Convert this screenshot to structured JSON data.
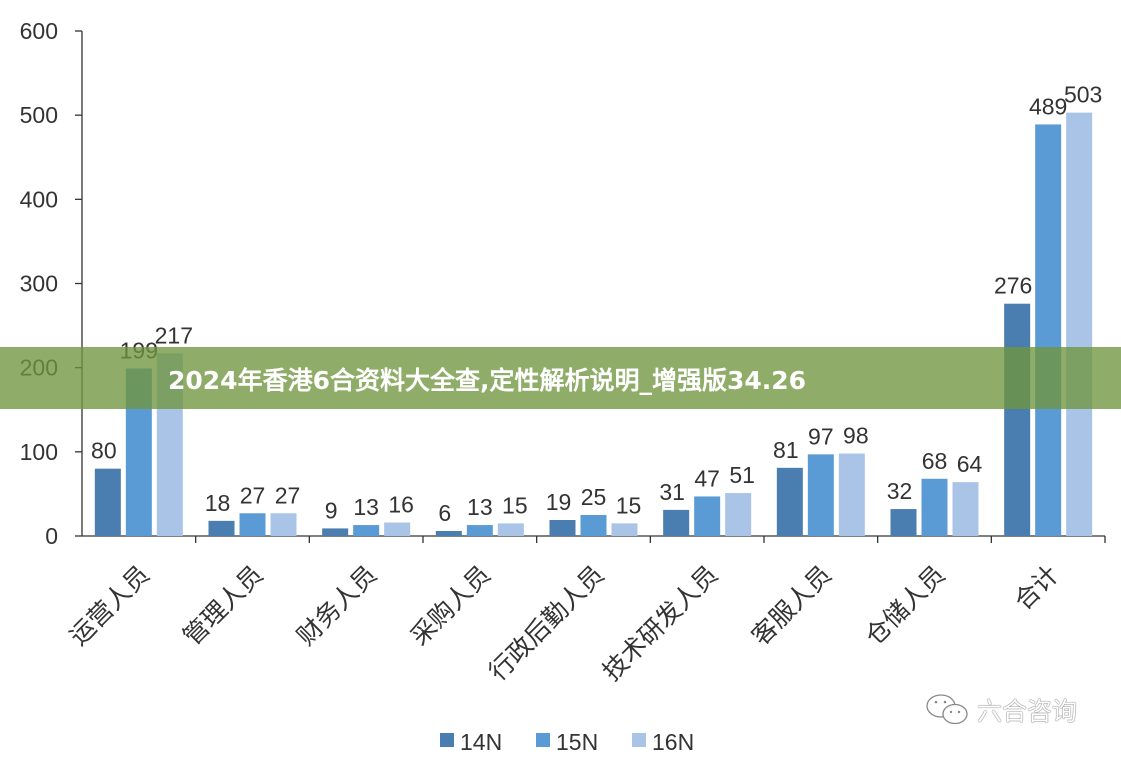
{
  "chart_data": {
    "type": "bar",
    "categories": [
      "运营人员",
      "管理人员",
      "财务人员",
      "采购人员",
      "行政后勤人员",
      "技术研发人员",
      "客服人员",
      "仓储人员",
      "合计"
    ],
    "series": [
      {
        "name": "14N",
        "color": "#4a7db0",
        "values": [
          80,
          18,
          9,
          6,
          19,
          31,
          81,
          32,
          276
        ]
      },
      {
        "name": "15N",
        "color": "#5b9bd5",
        "values": [
          199,
          27,
          13,
          13,
          25,
          47,
          97,
          68,
          489
        ]
      },
      {
        "name": "16N",
        "color": "#a9c4e6",
        "values": [
          217,
          27,
          16,
          15,
          15,
          51,
          98,
          64,
          503
        ]
      }
    ],
    "ylim": [
      0,
      600
    ],
    "yticks": [
      0,
      100,
      200,
      300,
      400,
      500,
      600
    ],
    "grid": false,
    "legend": "bottom",
    "data_labels": true
  },
  "banner": {
    "text": "2024年香港6合资料大全查,定性解析说明_增强版34.26"
  },
  "watermark": {
    "text": "六合咨询",
    "icon": "wechat-icon"
  }
}
